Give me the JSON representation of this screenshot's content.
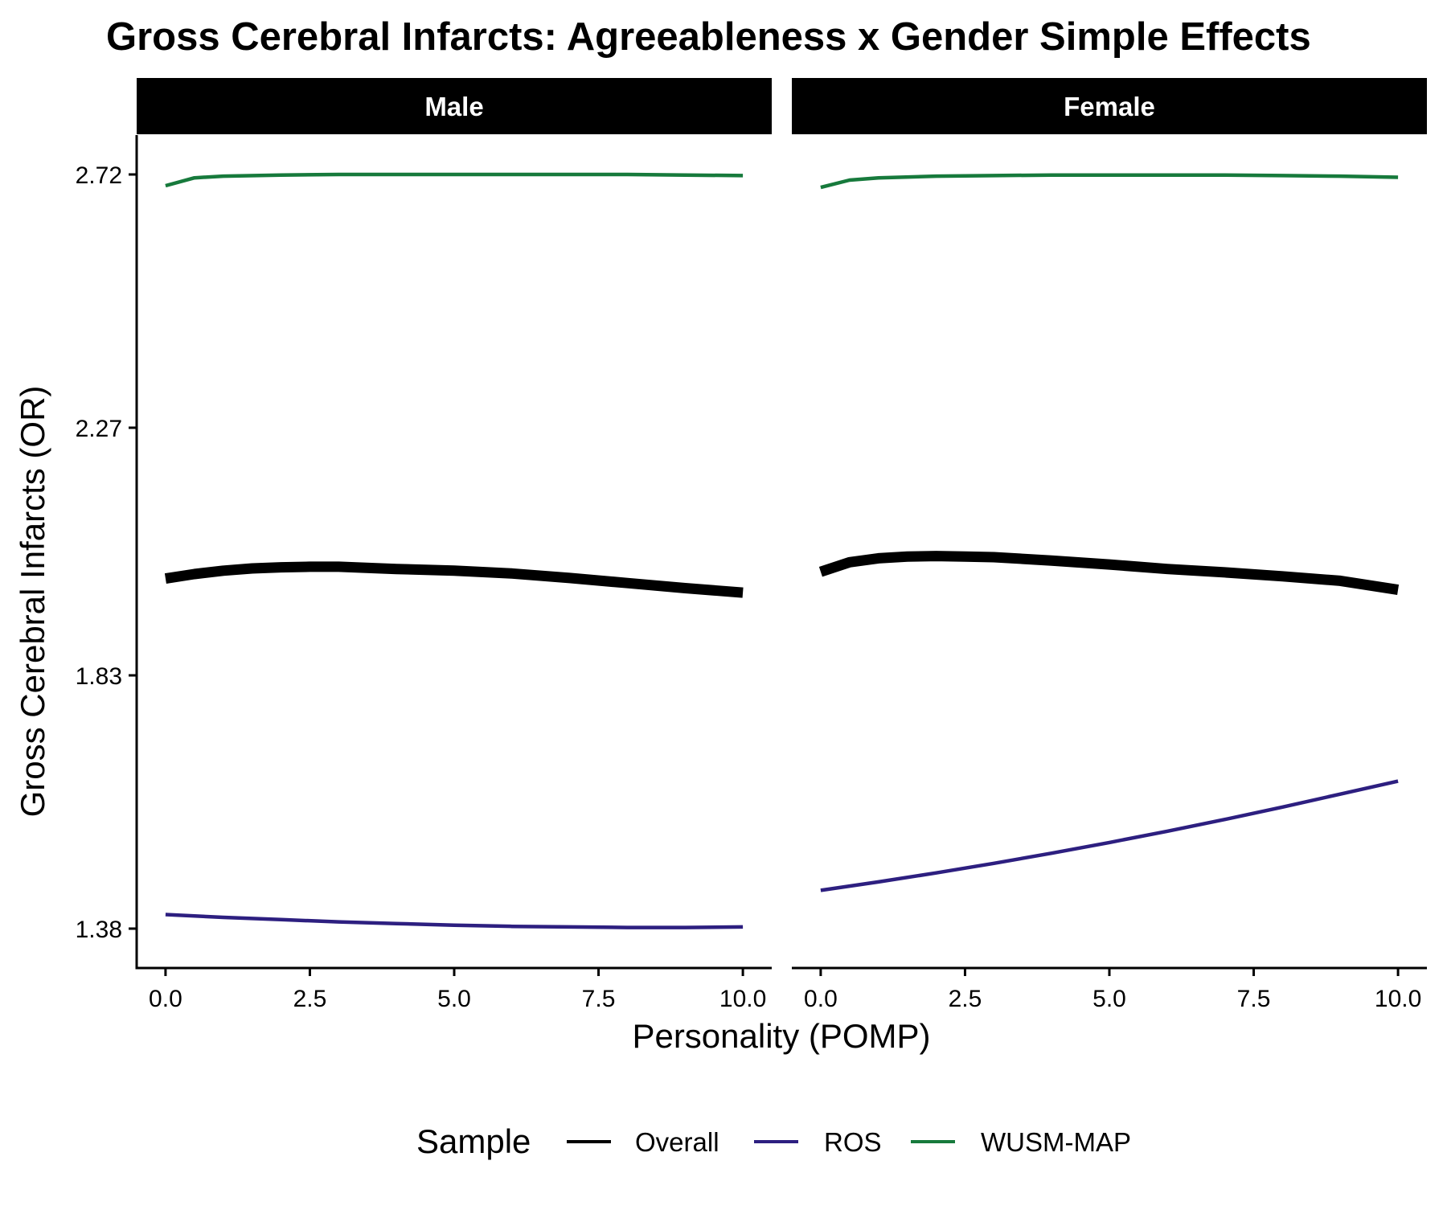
{
  "chart_data": {
    "type": "line",
    "title": "Gross Cerebral Infarcts: Agreeableness x Gender Simple Effects",
    "xlabel": "Personality (POMP)",
    "ylabel": "Gross Cerebral Infarcts (OR)",
    "xlim": [
      -0.5,
      10.5
    ],
    "ylim": [
      1.31,
      2.79
    ],
    "x_ticks": [
      "0.0",
      "2.5",
      "5.0",
      "7.5",
      "10.0"
    ],
    "x_tick_values": [
      0,
      2.5,
      5,
      7.5,
      10
    ],
    "y_ticks": [
      "1.38",
      "1.83",
      "2.27",
      "2.72"
    ],
    "y_tick_values": [
      1.38,
      1.83,
      2.27,
      2.72
    ],
    "grid": false,
    "legend": {
      "title": "Sample",
      "position": "bottom",
      "entries": [
        {
          "name": "Overall",
          "color": "#000000"
        },
        {
          "name": "ROS",
          "color": "#2d1f80"
        },
        {
          "name": "WUSM-MAP",
          "color": "#177a3c"
        }
      ]
    },
    "panels": [
      {
        "label": "Male",
        "series": [
          {
            "name": "WUSM-MAP",
            "color": "#177a3c",
            "width": 4.5,
            "x": [
              0,
              0.5,
              1,
              2,
              3,
              4,
              5,
              6,
              7,
              8,
              9,
              10
            ],
            "y": [
              2.7,
              2.714,
              2.717,
              2.719,
              2.72,
              2.72,
              2.72,
              2.72,
              2.72,
              2.72,
              2.719,
              2.718
            ]
          },
          {
            "name": "Overall",
            "color": "#000000",
            "width": 13,
            "x": [
              0,
              0.5,
              1,
              1.5,
              2,
              2.5,
              3,
              4,
              5,
              6,
              7,
              8,
              9,
              10
            ],
            "y": [
              2.002,
              2.01,
              2.016,
              2.02,
              2.022,
              2.023,
              2.023,
              2.019,
              2.016,
              2.011,
              2.003,
              1.994,
              1.985,
              1.977
            ]
          },
          {
            "name": "ROS",
            "color": "#2d1f80",
            "width": 4.5,
            "x": [
              0,
              1,
              2,
              3,
              4,
              5,
              6,
              7,
              8,
              9,
              10
            ],
            "y": [
              1.405,
              1.4,
              1.396,
              1.392,
              1.389,
              1.386,
              1.384,
              1.383,
              1.382,
              1.382,
              1.383
            ]
          }
        ]
      },
      {
        "label": "Female",
        "series": [
          {
            "name": "WUSM-MAP",
            "color": "#177a3c",
            "width": 4.5,
            "x": [
              0,
              0.5,
              1,
              2,
              3,
              4,
              5,
              6,
              7,
              8,
              9,
              10
            ],
            "y": [
              2.697,
              2.71,
              2.714,
              2.717,
              2.718,
              2.719,
              2.719,
              2.719,
              2.719,
              2.718,
              2.717,
              2.715
            ]
          },
          {
            "name": "Overall",
            "color": "#000000",
            "width": 13,
            "x": [
              0,
              0.5,
              1,
              1.5,
              2,
              2.5,
              3,
              4,
              5,
              6,
              7,
              8,
              9,
              10
            ],
            "y": [
              2.014,
              2.031,
              2.038,
              2.041,
              2.042,
              2.041,
              2.04,
              2.034,
              2.027,
              2.019,
              2.013,
              2.006,
              1.998,
              1.982
            ]
          },
          {
            "name": "ROS",
            "color": "#2d1f80",
            "width": 4.5,
            "x": [
              0,
              1,
              2,
              3,
              4,
              5,
              6,
              7,
              8,
              9,
              10
            ],
            "y": [
              1.448,
              1.463,
              1.479,
              1.496,
              1.514,
              1.533,
              1.553,
              1.574,
              1.596,
              1.619,
              1.642
            ]
          }
        ]
      }
    ]
  }
}
